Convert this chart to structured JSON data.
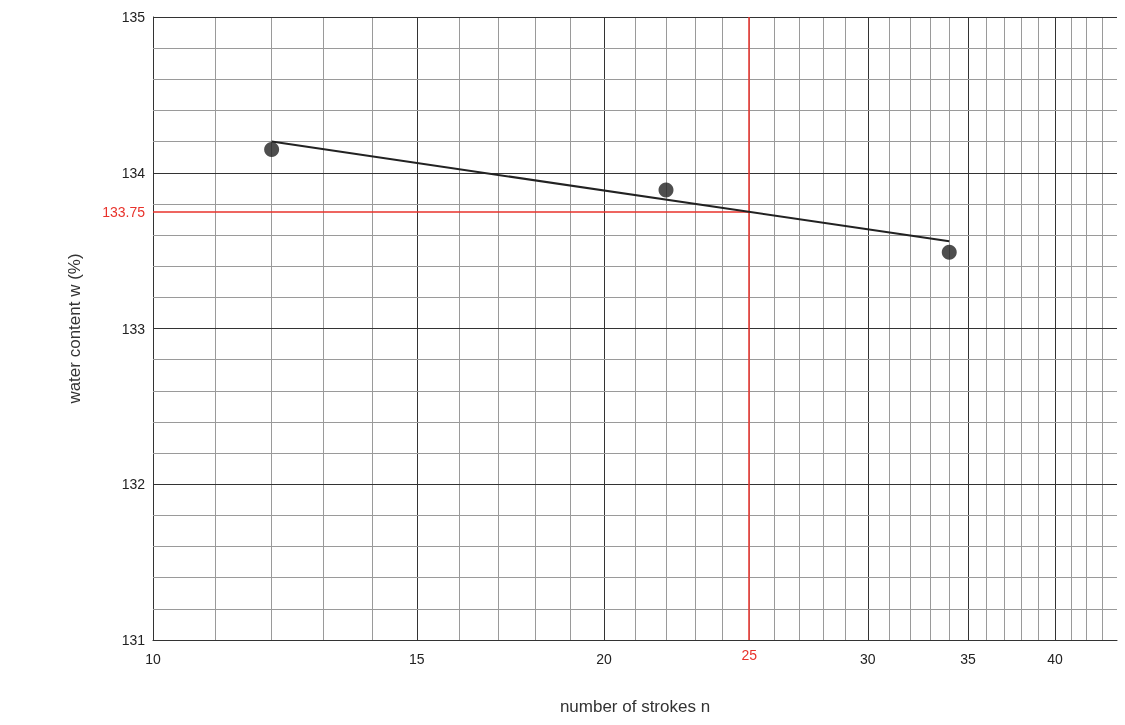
{
  "chart_data": {
    "type": "scatter",
    "log": "x",
    "xlabel": "number of strokes n",
    "ylabel": "water content w (%)",
    "xlim": [
      10,
      44
    ],
    "ylim": [
      131,
      135
    ],
    "xticks": [
      10,
      {
        "value": 11,
        "label": null
      },
      {
        "value": 12,
        "label": null
      },
      {
        "value": 13,
        "label": null
      },
      {
        "value": 14,
        "label": null
      },
      15,
      {
        "value": 16,
        "label": null
      },
      {
        "value": 17,
        "label": null
      },
      {
        "value": 18,
        "label": null
      },
      {
        "value": 19,
        "label": null
      },
      20,
      {
        "value": 21,
        "label": null
      },
      {
        "value": 22,
        "label": null
      },
      {
        "value": 23,
        "label": null
      },
      {
        "value": 24,
        "label": null
      },
      {
        "value": 25,
        "label": null
      },
      {
        "value": 26,
        "label": null
      },
      {
        "value": 27,
        "label": null
      },
      {
        "value": 28,
        "label": null
      },
      {
        "value": 29,
        "label": null
      },
      30,
      {
        "value": 31,
        "label": null
      },
      {
        "value": 32,
        "label": null
      },
      {
        "value": 33,
        "label": null
      },
      {
        "value": 34,
        "label": null
      },
      35,
      {
        "value": 36,
        "label": null
      },
      {
        "value": 37,
        "label": null
      },
      {
        "value": 38,
        "label": null
      },
      {
        "value": 39,
        "label": null
      },
      40,
      {
        "value": 41,
        "label": null
      },
      {
        "value": 42,
        "label": null
      },
      {
        "value": 43,
        "label": null
      }
    ],
    "yticks": [
      131,
      {
        "value": 131.2,
        "label": null
      },
      {
        "value": 131.4,
        "label": null
      },
      {
        "value": 131.6,
        "label": null
      },
      {
        "value": 131.8,
        "label": null
      },
      132,
      {
        "value": 132.2,
        "label": null
      },
      {
        "value": 132.4,
        "label": null
      },
      {
        "value": 132.6,
        "label": null
      },
      {
        "value": 132.8,
        "label": null
      },
      133,
      {
        "value": 133.2,
        "label": null
      },
      {
        "value": 133.4,
        "label": null
      },
      {
        "value": 133.6,
        "label": null
      },
      {
        "value": 133.8,
        "label": null
      },
      134,
      {
        "value": 134.2,
        "label": null
      },
      {
        "value": 134.4,
        "label": null
      },
      {
        "value": 134.6,
        "label": null
      },
      {
        "value": 134.8,
        "label": null
      },
      135
    ],
    "grid": true,
    "marker": "circle",
    "series": [
      {
        "color": "#222222",
        "x": [
          12,
          22,
          34
        ],
        "values": [
          134.15,
          133.89,
          133.49
        ]
      },
      {
        "type": "line",
        "color": "#222222",
        "marker": "none",
        "x": [
          12,
          34
        ],
        "values": [
          134.2,
          133.56
        ]
      }
    ],
    "ref_lines": [
      {
        "axis": "x",
        "value": 25,
        "label": "25",
        "color": "#e8322b"
      },
      {
        "axis": "y",
        "value": 133.75,
        "label": "133.75",
        "color": "#e8322b"
      }
    ]
  }
}
